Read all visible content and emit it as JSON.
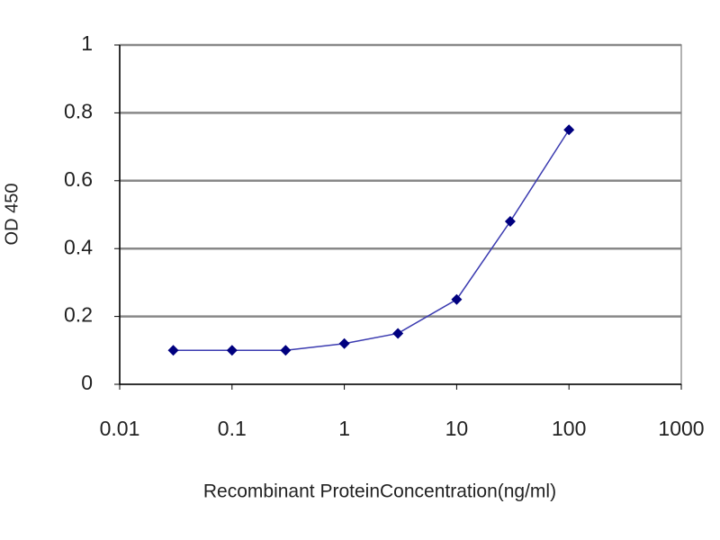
{
  "chart_data": {
    "type": "line",
    "xlabel": "Recombinant ProteinConcentration(ng/ml)",
    "ylabel": "OD 450",
    "x": [
      0.03,
      0.1,
      0.3,
      1,
      3,
      10,
      30,
      100
    ],
    "values": [
      0.1,
      0.1,
      0.1,
      0.12,
      0.15,
      0.25,
      0.48,
      0.75
    ],
    "color": "#00007f",
    "xlog": true,
    "xlim": [
      0.01,
      1000
    ],
    "xticks": [
      0.01,
      0.1,
      1,
      10,
      100,
      1000
    ],
    "ylim": [
      0,
      1
    ],
    "yticks": [
      0,
      0.2,
      0.4,
      0.6,
      0.8,
      1
    ],
    "grid": true
  }
}
